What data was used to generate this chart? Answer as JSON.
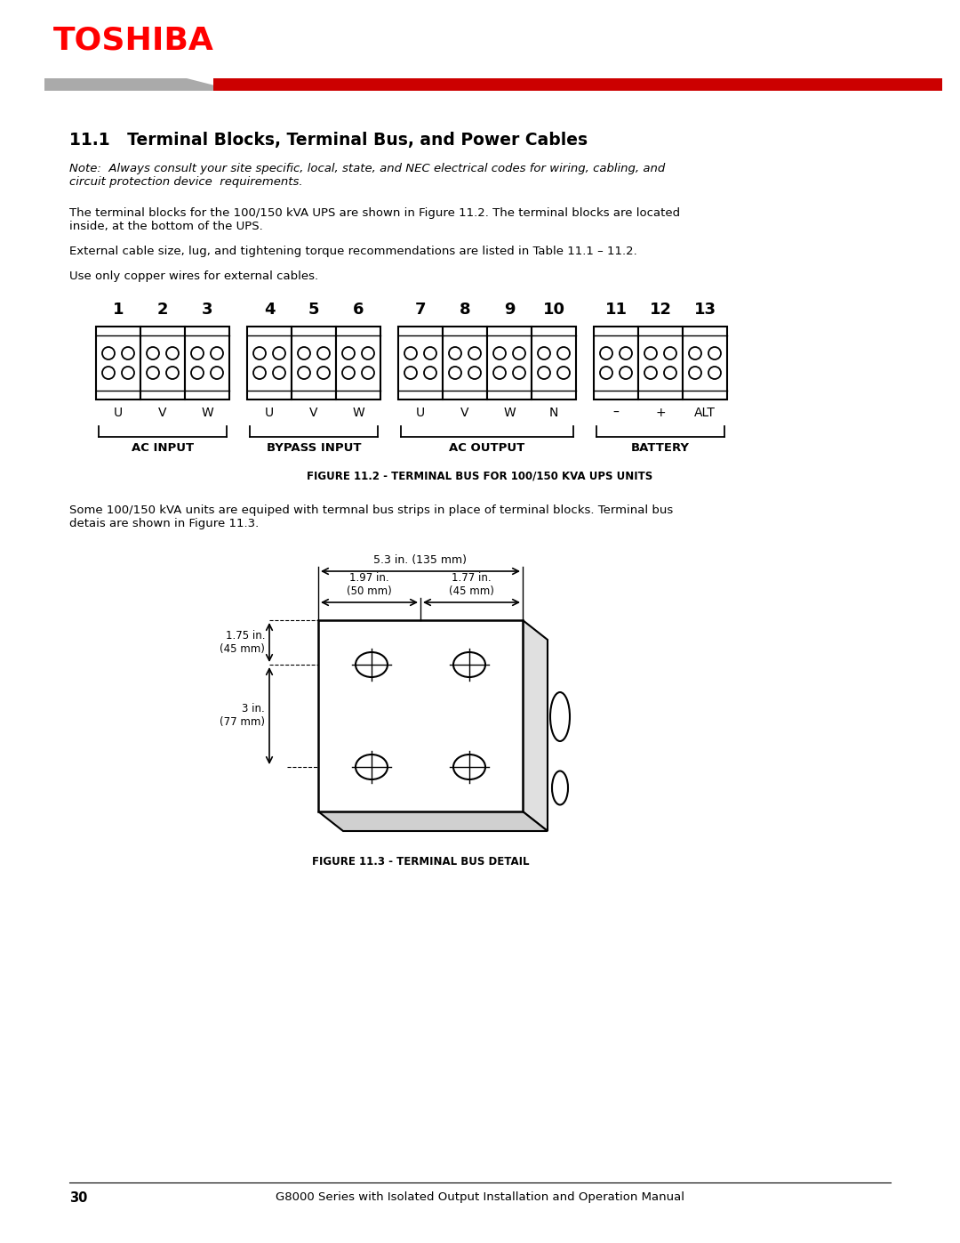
{
  "title": "11.1   Terminal Blocks, Terminal Bus, and Power Cables",
  "note_text": "Note:  Always consult your site specific, local, state, and NEC electrical codes for wiring, cabling, and\ncircuit protection device  requirements.",
  "body_text1": "The terminal blocks for the 100/150 kVA UPS are shown in Figure 11.2. The terminal blocks are located\ninside, at the bottom of the UPS.",
  "body_text2": "External cable size, lug, and tightening torque recommendations are listed in Table 11.1 – 11.2.",
  "body_text3": "Use only copper wires for external cables.",
  "fig1_caption": "FIGURE 11.2 - TERMINAL BUS FOR 100/150 KVA UPS UNITS",
  "fig2_caption": "FIGURE 11.3 - TERMINAL BUS DETAIL",
  "terminal_numbers": [
    "1",
    "2",
    "3",
    "4",
    "5",
    "6",
    "7",
    "8",
    "9",
    "10",
    "11",
    "12",
    "13"
  ],
  "terminal_labels": [
    "U",
    "V",
    "W",
    "U",
    "V",
    "W",
    "U",
    "V",
    "W",
    "N",
    "–",
    "+",
    "ALT"
  ],
  "group_labels": [
    "AC INPUT",
    "BYPASS INPUT",
    "AC OUTPUT",
    "BATTERY"
  ],
  "body_text4": "Some 100/150 kVA units are equiped with termnal bus strips in place of terminal blocks. Terminal bus\ndetais are shown in Figure 11.3.",
  "page_number": "30",
  "footer_text": "G8000 Series with Isolated Output Installation and Operation Manual",
  "toshiba_color": "#FF0000",
  "red_bar_color": "#CC0000",
  "gray_bar_color": "#AAAAAA",
  "dim_53": "5.3 in. (135 mm)",
  "dim_197": "1.97 in.\n(50 mm)",
  "dim_177": "1.77 in.\n(45 mm)",
  "dim_175": "1.75 in.\n(45 mm)",
  "dim_3": "3 in.\n(77 mm)"
}
